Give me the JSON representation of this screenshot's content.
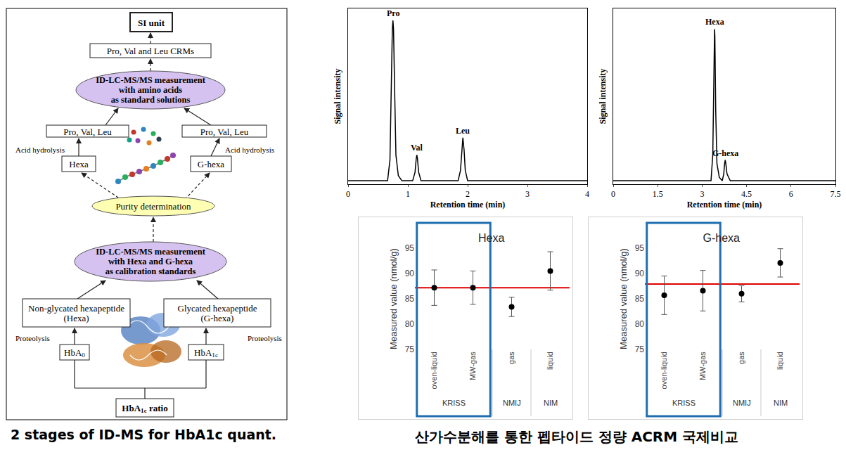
{
  "diagram": {
    "caption": "2 stages of ID-MS for HbA1c quant.",
    "nodes": [
      {
        "lines": [
          "SI unit"
        ]
      },
      {
        "lines": [
          "Pro, Val and Leu CRMs"
        ]
      },
      {
        "lines": [
          "ID-LC-MS/MS measurement",
          "with amino acids",
          "as standard solutions"
        ]
      },
      {
        "lines": [
          "Pro, Val, Leu"
        ]
      },
      {
        "lines": [
          "Pro, Val, Leu"
        ]
      },
      {
        "lines": [
          "Hexa"
        ]
      },
      {
        "lines": [
          "G-hexa"
        ]
      },
      {
        "lines": [
          "Purity determination"
        ]
      },
      {
        "lines": [
          "ID-LC-MS/MS measurement",
          "with Hexa and G-hexa",
          "as calibration standards"
        ]
      },
      {
        "lines": [
          "Non-glycated hexapeptide",
          "(Hexa)"
        ]
      },
      {
        "lines": [
          "Glycated hexapeptide",
          "(G-hexa)"
        ]
      },
      {
        "lines": [
          [
            {
              "text": "HbA"
            },
            {
              "text": "0",
              "sub": true
            }
          ]
        ]
      },
      {
        "lines": [
          [
            {
              "text": "HbA"
            },
            {
              "text": "1c",
              "sub": true
            }
          ]
        ]
      },
      {
        "lines": [
          [
            {
              "text": "HbA"
            },
            {
              "text": "1c",
              "sub": true
            },
            {
              "text": " ratio"
            }
          ]
        ]
      }
    ],
    "labels": [
      "Acid hydrolysis",
      "Acid hydrolysis",
      "Proteolysis",
      "Proteolysis"
    ]
  },
  "charts_caption": "산가수분해를 통한 펩타이드 정량 ACRM 국제비교",
  "chart_data": [
    {
      "type": "line",
      "x_label": "Retention time (min)",
      "y_label": "Signal intensity",
      "x": [
        0,
        0.66,
        0.7,
        0.72,
        0.74,
        0.75,
        0.76,
        0.78,
        0.8,
        0.84,
        0.9,
        1.08,
        1.12,
        1.14,
        1.15,
        1.16,
        1.18,
        1.22,
        1.84,
        1.88,
        1.9,
        1.92,
        1.94,
        1.96,
        2.0,
        4
      ],
      "values": [
        0,
        0,
        12,
        55,
        88,
        93,
        88,
        50,
        15,
        3,
        0,
        0,
        5,
        13,
        15,
        13,
        5,
        0,
        0,
        6,
        18,
        25,
        18,
        6,
        0,
        0
      ],
      "xlim": [
        0,
        4
      ],
      "xticks": [
        0,
        1,
        2,
        3,
        4
      ],
      "ylim": [
        -2,
        100
      ],
      "tick_labels": "x",
      "grid": false,
      "color": "#000000",
      "annotations": [
        {
          "text": "Pro",
          "x": 0.75,
          "y": 93
        },
        {
          "text": "Val",
          "x": 1.15,
          "y": 15
        },
        {
          "text": "Leu",
          "x": 1.92,
          "y": 25
        }
      ]
    },
    {
      "type": "line",
      "x_label": "Retention time (min)",
      "y_label": "Signal intensity",
      "x": [
        0,
        3.3,
        3.36,
        3.39,
        3.41,
        3.42,
        3.43,
        3.46,
        3.5,
        3.58,
        3.68,
        3.73,
        3.76,
        3.78,
        3.8,
        3.84,
        3.95,
        7.5
      ],
      "values": [
        0,
        0,
        15,
        55,
        84,
        88,
        84,
        40,
        10,
        2,
        0,
        4,
        10,
        12,
        10,
        4,
        0,
        0
      ],
      "xlim": [
        0,
        7.5
      ],
      "xticks": [
        0,
        1.5,
        3,
        4.5,
        6,
        7.5
      ],
      "ylim": [
        -2,
        100
      ],
      "tick_labels": "x",
      "grid": false,
      "color": "#000000",
      "annotations": [
        {
          "text": "Hexa",
          "x": 3.42,
          "y": 88
        },
        {
          "text": "G-hexa",
          "x": 3.78,
          "y": 12
        }
      ]
    },
    {
      "type": "scatter",
      "title": "Hexa",
      "y_label": "Measured value (nmol/g)",
      "categories": [
        "oven-liquid",
        "MW-gas",
        "gas",
        "liquid"
      ],
      "values": [
        87.2,
        87.2,
        83.4,
        90.5
      ],
      "errors": [
        3.5,
        3.3,
        1.9,
        3.8
      ],
      "reference_line": 87.2,
      "groups": [
        {
          "label": "KRISS",
          "categories": [
            "oven-liquid",
            "MW-gas"
          ]
        },
        {
          "label": "NMIJ",
          "categories": [
            "gas"
          ]
        },
        {
          "label": "NIM",
          "categories": [
            "liquid"
          ]
        }
      ],
      "ylim": [
        75,
        95
      ],
      "yticks": [
        75,
        80,
        85,
        90,
        95
      ],
      "grid": false,
      "color": "#000000",
      "marker": "circle"
    },
    {
      "type": "scatter",
      "title": "G-hexa",
      "y_label": "Measured value (nmol/g)",
      "categories": [
        "oven-liquid",
        "MW-gas",
        "gas",
        "liquid"
      ],
      "values": [
        85.7,
        86.6,
        86.0,
        92.1
      ],
      "errors": [
        3.8,
        4.0,
        1.6,
        2.8
      ],
      "reference_line": 87.9,
      "groups": [
        {
          "label": "KRISS",
          "categories": [
            "oven-liquid",
            "MW-gas"
          ]
        },
        {
          "label": "NMIJ",
          "categories": [
            "gas"
          ]
        },
        {
          "label": "NIM",
          "categories": [
            "liquid"
          ]
        }
      ],
      "ylim": [
        75,
        95
      ],
      "yticks": [
        75,
        80,
        85,
        90,
        95
      ],
      "grid": false,
      "color": "#000000",
      "marker": "circle"
    }
  ]
}
